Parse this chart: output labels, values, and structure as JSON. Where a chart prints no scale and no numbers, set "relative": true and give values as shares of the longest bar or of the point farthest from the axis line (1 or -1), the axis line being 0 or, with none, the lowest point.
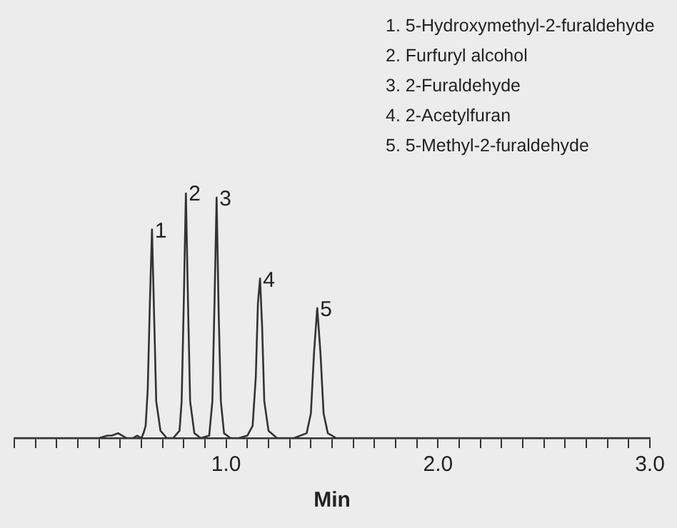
{
  "chart_data": {
    "type": "line",
    "xlabel": "Min",
    "relative": true,
    "tick_labels": "x",
    "grid": false,
    "legend": false,
    "marker": "none",
    "line_style": "solid",
    "xlim": [
      0,
      3
    ],
    "xticks": [
      {
        "value": 0,
        "label": null
      },
      {
        "value": 0.1,
        "label": null
      },
      {
        "value": 0.2,
        "label": null
      },
      {
        "value": 0.3,
        "label": null
      },
      {
        "value": 0.4,
        "label": null
      },
      {
        "value": 0.5,
        "label": null
      },
      {
        "value": 0.6,
        "label": null
      },
      {
        "value": 0.7,
        "label": null
      },
      {
        "value": 0.8,
        "label": null
      },
      {
        "value": 0.9,
        "label": null
      },
      {
        "value": 1,
        "label": "1.0"
      },
      {
        "value": 1.1,
        "label": null
      },
      {
        "value": 1.2,
        "label": null
      },
      {
        "value": 1.3,
        "label": null
      },
      {
        "value": 1.4,
        "label": null
      },
      {
        "value": 1.5,
        "label": null
      },
      {
        "value": 1.6,
        "label": null
      },
      {
        "value": 1.7,
        "label": null
      },
      {
        "value": 1.8,
        "label": null
      },
      {
        "value": 1.9,
        "label": null
      },
      {
        "value": 2,
        "label": "2.0"
      },
      {
        "value": 2.1,
        "label": null
      },
      {
        "value": 2.2,
        "label": null
      },
      {
        "value": 2.3,
        "label": null
      },
      {
        "value": 2.4,
        "label": null
      },
      {
        "value": 2.5,
        "label": null
      },
      {
        "value": 2.6,
        "label": null
      },
      {
        "value": 2.7,
        "label": null
      },
      {
        "value": 2.8,
        "label": null
      },
      {
        "value": 2.9,
        "label": null
      },
      {
        "value": 3,
        "label": "3.0"
      }
    ],
    "series": [
      {
        "color": "#333333",
        "x": [
          0,
          0.4,
          0.44,
          0.46,
          0.49,
          0.51,
          0.53,
          0.56,
          0.58,
          0.6,
          0.61,
          0.62,
          0.63,
          0.64,
          0.65,
          0.66,
          0.67,
          0.69,
          0.72,
          0.75,
          0.78,
          0.79,
          0.8,
          0.81,
          0.82,
          0.83,
          0.85,
          0.88,
          0.92,
          0.935,
          0.945,
          0.955,
          0.965,
          0.975,
          0.99,
          1.02,
          1.06,
          1.1,
          1.125,
          1.14,
          1.15,
          1.16,
          1.17,
          1.18,
          1.2,
          1.24,
          1.32,
          1.38,
          1.4,
          1.415,
          1.43,
          1.445,
          1.46,
          1.48,
          1.52,
          2,
          3
        ],
        "values": [
          0,
          0,
          0.01,
          0.01,
          0.02,
          0.01,
          0,
          0,
          0.01,
          0,
          0.02,
          0.05,
          0.2,
          0.55,
          0.85,
          0.5,
          0.15,
          0.03,
          0,
          0,
          0.03,
          0.15,
          0.55,
          1,
          0.55,
          0.15,
          0.02,
          0,
          0.01,
          0.15,
          0.55,
          0.98,
          0.5,
          0.15,
          0.02,
          0,
          0,
          0.01,
          0.05,
          0.25,
          0.55,
          0.65,
          0.45,
          0.15,
          0.03,
          0,
          0,
          0.02,
          0.1,
          0.35,
          0.53,
          0.35,
          0.1,
          0.02,
          0,
          0,
          0
        ]
      }
    ],
    "annotations": [
      "1. 5-Hydroxymethyl-2-furaldehyde",
      "2. Furfuryl alcohol",
      "3. 2-Furaldehyde",
      "4. 2-Acetylfuran",
      "5. 5-Methyl-2-furaldehyde",
      {
        "text": "1",
        "x": 0.65,
        "y": 0.85
      },
      {
        "text": "2",
        "x": 0.81,
        "y": 1
      },
      {
        "text": "3",
        "x": 0.955,
        "y": 0.98
      },
      {
        "text": "4",
        "x": 1.16,
        "y": 0.65
      },
      {
        "text": "5",
        "x": 1.43,
        "y": 0.53
      }
    ]
  }
}
